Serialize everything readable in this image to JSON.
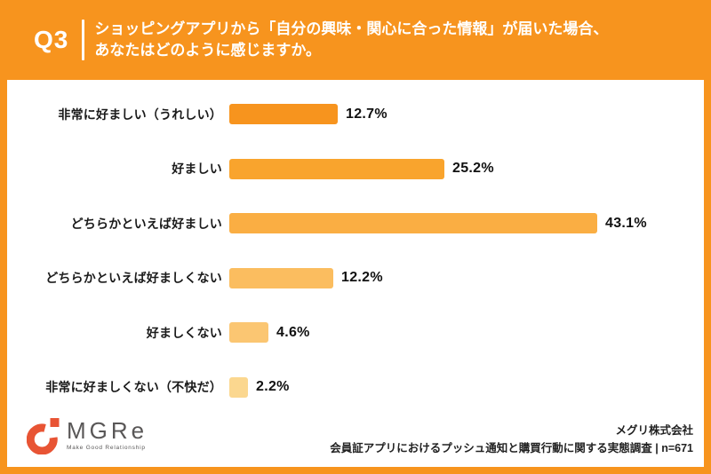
{
  "header": {
    "question_number": "Q3",
    "question_line1": "ショッピングアプリから「自分の興味・関心に合った情報」が届いた場合、",
    "question_line2": "あなたはどのように感じますか。"
  },
  "chart_data": {
    "type": "bar",
    "orientation": "horizontal",
    "title": "ショッピングアプリから「自分の興味・関心に合った情報」が届いた場合、あなたはどのように感じますか。",
    "categories": [
      "非常に好ましい（うれしい）",
      "好ましい",
      "どちらかといえば好ましい",
      "どちらかといえば好ましくない",
      "好ましくない",
      "非常に好ましくない（不快だ）"
    ],
    "values": [
      12.7,
      25.2,
      43.1,
      12.2,
      4.6,
      2.2
    ],
    "value_labels": [
      "12.7%",
      "25.2%",
      "43.1%",
      "12.2%",
      "4.6%",
      "2.2%"
    ],
    "bar_colors": [
      "#F7941E",
      "#F9A42D",
      "#FAAE43",
      "#FBBD5F",
      "#FBC672",
      "#FBD78F"
    ],
    "xlim": [
      0,
      45
    ],
    "grid": false,
    "legend": false
  },
  "footer": {
    "logo_text": "MGRe",
    "logo_tagline": "Make Good Relationship",
    "company": "メグリ株式会社",
    "source_line": "会員証アプリにおけるプッシュ通知と購買行動に関する実態調査 | n=671"
  },
  "colors": {
    "background": "#F7941E",
    "panel": "#FFFFFF",
    "logo_mark": "#E85434",
    "text_dark": "#1A1A1A",
    "header_text": "#FFFFFF"
  }
}
